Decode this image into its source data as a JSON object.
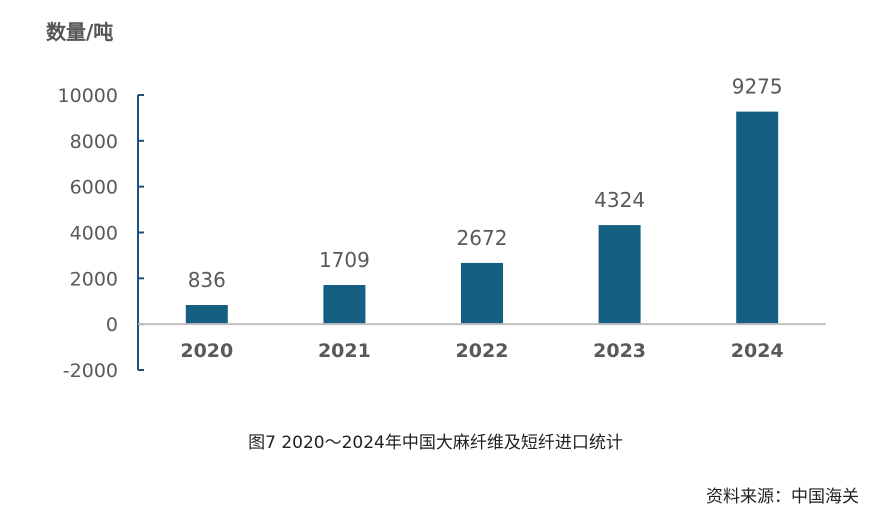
{
  "unit_label": "数量/吨",
  "caption": "图7   2020～2024年中国大麻纤维及短纤进口统计",
  "source": "资料来源：中国海关",
  "colors": {
    "bar": "#156082",
    "y_axis": "#1f4e79",
    "x_axis": "#bfbfbf",
    "text": "#595959"
  },
  "chart_data": {
    "type": "bar",
    "categories": [
      "2020",
      "2021",
      "2022",
      "2023",
      "2024"
    ],
    "values": [
      836,
      1709,
      2672,
      4324,
      9275
    ],
    "data_labels": [
      "836",
      "1709",
      "2672",
      "4324",
      "9275"
    ],
    "ylabel": "数量/吨",
    "ylim": [
      -2000,
      10000
    ],
    "yticks": [
      10000,
      8000,
      6000,
      4000,
      2000,
      0,
      -2000
    ],
    "grid": false,
    "legend": "none"
  }
}
